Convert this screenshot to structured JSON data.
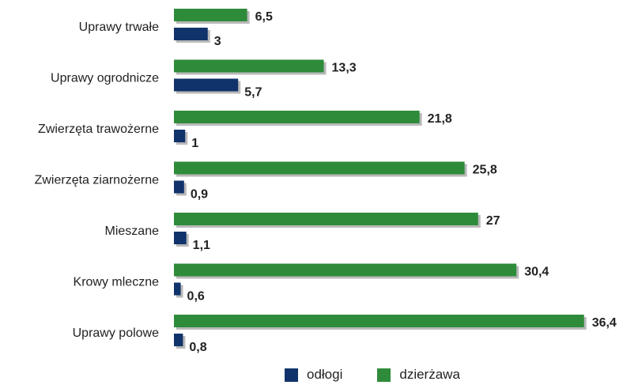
{
  "chart_data": {
    "type": "bar",
    "orientation": "horizontal",
    "title": "",
    "categories": [
      "Uprawy trwałe",
      "Uprawy ogrodnicze",
      "Zwierzęta trawożerne",
      "Zwierzęta ziarnożerne",
      "Mieszane",
      "Krowy mleczne",
      "Uprawy polowe"
    ],
    "series": [
      {
        "name": "dzierżawa",
        "color": "#2e8b3a",
        "values": [
          6.5,
          13.3,
          21.8,
          25.8,
          27,
          30.4,
          36.4
        ],
        "labels": [
          "6,5",
          "13,3",
          "21,8",
          "25,8",
          "27",
          "30,4",
          "36,4"
        ]
      },
      {
        "name": "odłogi",
        "color": "#11336b",
        "values": [
          3,
          5.7,
          1,
          0.9,
          1.1,
          0.6,
          0.8
        ],
        "labels": [
          "3",
          "5,7",
          "1",
          "0,9",
          "1,1",
          "0,6",
          "0,8"
        ]
      }
    ],
    "xlim": [
      0,
      40
    ],
    "grid": false,
    "legend_position": "bottom"
  },
  "legend": {
    "items": [
      {
        "label": "odłogi",
        "color": "#11336b"
      },
      {
        "label": "dzierżawa",
        "color": "#2e8b3a"
      }
    ]
  }
}
